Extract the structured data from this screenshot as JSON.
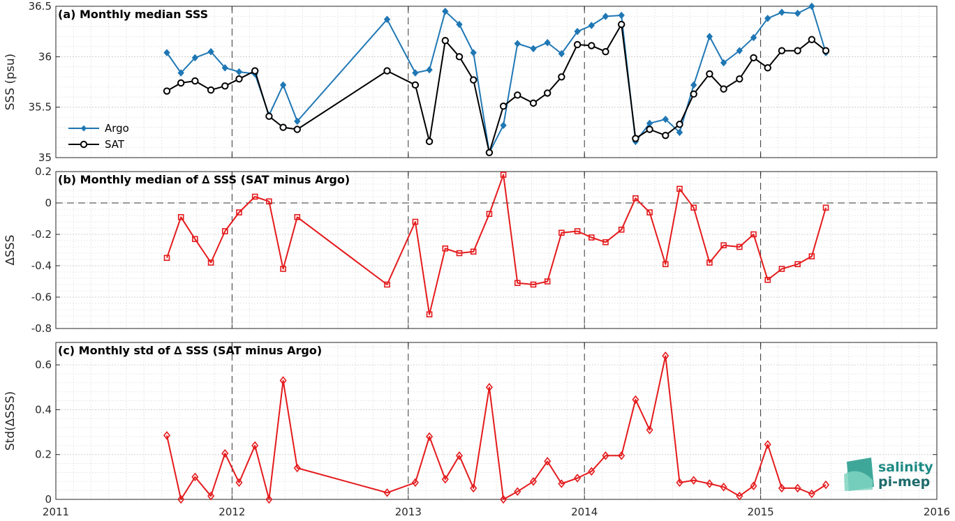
{
  "colors": {
    "argo": "#1f77b4",
    "sat": "#000000",
    "delta": "#e41a1c"
  },
  "logo": {
    "line1": "salinity",
    "line2": "pi-mep"
  },
  "chart_data": [
    {
      "type": "line",
      "title": "(a) Monthly median SSS",
      "ylabel": "SSS (psu)",
      "ylim": [
        35,
        36.5
      ],
      "yticks": [
        "35",
        "35.5",
        "36",
        "36.5"
      ],
      "legend": "left",
      "grid": true,
      "x": [
        2011.63,
        2011.71,
        2011.79,
        2011.88,
        2011.96,
        2012.04,
        2012.13,
        2012.21,
        2012.29,
        2012.37,
        2012.88,
        2013.04,
        2013.12,
        2013.21,
        2013.29,
        2013.37,
        2013.46,
        2013.54,
        2013.62,
        2013.71,
        2013.79,
        2013.87,
        2013.96,
        2014.04,
        2014.12,
        2014.21,
        2014.29,
        2014.37,
        2014.46,
        2014.54,
        2014.62,
        2014.71,
        2014.79,
        2014.88,
        2014.96,
        2015.04,
        2015.12,
        2015.21,
        2015.29,
        2015.37
      ],
      "series": [
        {
          "name": "Argo",
          "marker": "diamond-filled",
          "values": [
            36.04,
            35.84,
            35.99,
            36.05,
            35.89,
            35.85,
            35.83,
            35.42,
            35.72,
            35.36,
            36.37,
            35.84,
            35.87,
            36.45,
            36.32,
            36.04,
            35.05,
            35.32,
            36.13,
            36.08,
            36.14,
            36.03,
            36.25,
            36.31,
            36.4,
            36.41,
            35.16,
            35.34,
            35.38,
            35.25,
            35.72,
            36.2,
            35.94,
            36.06,
            36.19,
            36.38,
            36.44,
            36.43,
            36.5,
            36.04
          ]
        },
        {
          "name": "SAT",
          "marker": "circle-open",
          "values": [
            35.66,
            35.74,
            35.76,
            35.67,
            35.71,
            35.78,
            35.86,
            35.41,
            35.3,
            35.28,
            35.86,
            35.72,
            35.16,
            36.16,
            36.0,
            35.77,
            35.05,
            35.51,
            35.62,
            35.54,
            35.64,
            35.8,
            36.12,
            36.11,
            36.05,
            36.32,
            35.19,
            35.28,
            35.22,
            35.33,
            35.63,
            35.83,
            35.68,
            35.78,
            35.99,
            35.89,
            36.06,
            36.06,
            36.17,
            36.06
          ]
        }
      ]
    },
    {
      "type": "line",
      "title": "(b) Monthly median of ∆ SSS (SAT minus Argo)",
      "ylabel": "∆SSS",
      "ylim": [
        -0.8,
        0.2
      ],
      "yticks": [
        "-0.8",
        "-0.6",
        "-0.4",
        "-0.2",
        "0",
        "0.2"
      ],
      "grid": true,
      "x": [
        2011.63,
        2011.71,
        2011.79,
        2011.88,
        2011.96,
        2012.04,
        2012.13,
        2012.21,
        2012.29,
        2012.37,
        2012.88,
        2013.04,
        2013.12,
        2013.21,
        2013.29,
        2013.37,
        2013.46,
        2013.54,
        2013.62,
        2013.71,
        2013.79,
        2013.87,
        2013.96,
        2014.04,
        2014.12,
        2014.21,
        2014.29,
        2014.37,
        2014.46,
        2014.54,
        2014.62,
        2014.71,
        2014.79,
        2014.88,
        2014.96,
        2015.04,
        2015.12,
        2015.21,
        2015.29,
        2015.37
      ],
      "series": [
        {
          "marker": "square-open",
          "values": [
            -0.35,
            -0.09,
            -0.23,
            -0.38,
            -0.18,
            -0.06,
            0.04,
            0.01,
            -0.42,
            -0.09,
            -0.52,
            -0.12,
            -0.71,
            -0.29,
            -0.32,
            -0.31,
            -0.07,
            0.18,
            -0.51,
            -0.52,
            -0.5,
            -0.19,
            -0.18,
            -0.22,
            -0.25,
            -0.17,
            0.03,
            -0.06,
            -0.39,
            0.09,
            -0.03,
            -0.38,
            -0.27,
            -0.28,
            -0.2,
            -0.49,
            -0.42,
            -0.39,
            -0.34,
            -0.03
          ]
        }
      ]
    },
    {
      "type": "line",
      "title": "(c) Monthly std of ∆ SSS (SAT minus Argo)",
      "ylabel": "Std(∆SSS)",
      "ylim": [
        0,
        0.7
      ],
      "yticks": [
        "0",
        "0.2",
        "0.4",
        "0.6"
      ],
      "xlim": [
        2011,
        2016
      ],
      "xticks": [
        "2011",
        "2012",
        "2013",
        "2014",
        "2015",
        "2016"
      ],
      "grid": true,
      "x": [
        2011.63,
        2011.71,
        2011.79,
        2011.88,
        2011.96,
        2012.04,
        2012.13,
        2012.21,
        2012.29,
        2012.37,
        2012.88,
        2013.04,
        2013.12,
        2013.21,
        2013.29,
        2013.37,
        2013.46,
        2013.54,
        2013.62,
        2013.71,
        2013.79,
        2013.87,
        2013.96,
        2014.04,
        2014.12,
        2014.21,
        2014.29,
        2014.37,
        2014.46,
        2014.54,
        2014.62,
        2014.71,
        2014.79,
        2014.88,
        2014.96,
        2015.04,
        2015.12,
        2015.21,
        2015.29,
        2015.37
      ],
      "series": [
        {
          "marker": "diamond-open",
          "values": [
            0.285,
            0.0,
            0.1,
            0.015,
            0.205,
            0.075,
            0.24,
            0.0,
            0.53,
            0.14,
            0.03,
            0.075,
            0.28,
            0.09,
            0.195,
            0.05,
            0.5,
            0.0,
            0.035,
            0.08,
            0.17,
            0.07,
            0.095,
            0.125,
            0.195,
            0.195,
            0.445,
            0.31,
            0.64,
            0.075,
            0.085,
            0.07,
            0.055,
            0.015,
            0.06,
            0.245,
            0.05,
            0.05,
            0.025,
            0.065
          ]
        }
      ]
    }
  ]
}
